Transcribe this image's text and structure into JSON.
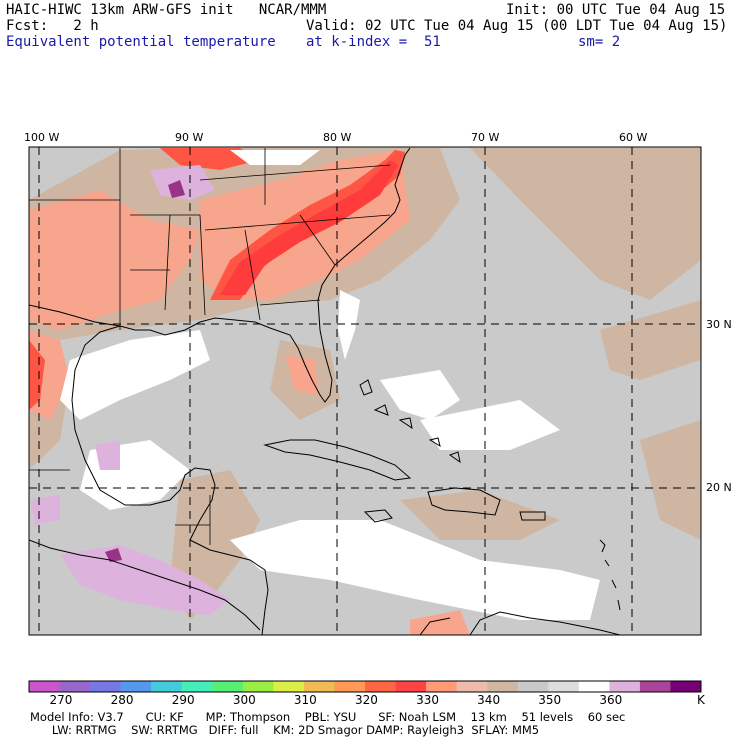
{
  "header": {
    "model_line": "HAIC-HIWC 13km ARW-GFS init   NCAR/MMM",
    "init": "Init: 00 UTC Tue 04 Aug 15",
    "fcst": "Fcst:   2 h",
    "valid": "Valid: 02 UTC Tue 04 Aug 15 (00 LDT Tue 04 Aug 15)",
    "field": "Equivalent potential temperature",
    "level": "at k-index =  51",
    "smooth": "sm= 2"
  },
  "map": {
    "lon_labels": [
      "100 W",
      "90 W",
      "80 W",
      "70 W",
      "60 W"
    ],
    "lat_labels": [
      "30 N",
      "20 N"
    ],
    "background": "#cacaca"
  },
  "colorbar": {
    "colors": [
      "#cc55cc",
      "#9966cc",
      "#7777e8",
      "#5599ee",
      "#44ccdd",
      "#44eebb",
      "#55ee77",
      "#99ee44",
      "#ddee44",
      "#eebb55",
      "#ff9955",
      "#ff6644",
      "#ff4444",
      "#ff9977",
      "#eebbaa",
      "#cfb7a4",
      "#c9c9c9",
      "#dddddd",
      "#ffffff",
      "#ddb3dd",
      "#aa4499",
      "#770077"
    ],
    "tick_labels": [
      "270",
      "280",
      "290",
      "300",
      "310",
      "320",
      "330",
      "340",
      "350",
      "360"
    ],
    "unit": "K"
  },
  "footer": {
    "line1": "Model Info: V3.7      CU: KF      MP: Thompson    PBL: YSU      SF: Noah LSM    13 km    51 levels    60 sec",
    "line2": "      LW: RRTMG    SW: RRTMG   DIFF: full    KM: 2D Smagor DAMP: Rayleigh3  SFLAY: MM5"
  }
}
